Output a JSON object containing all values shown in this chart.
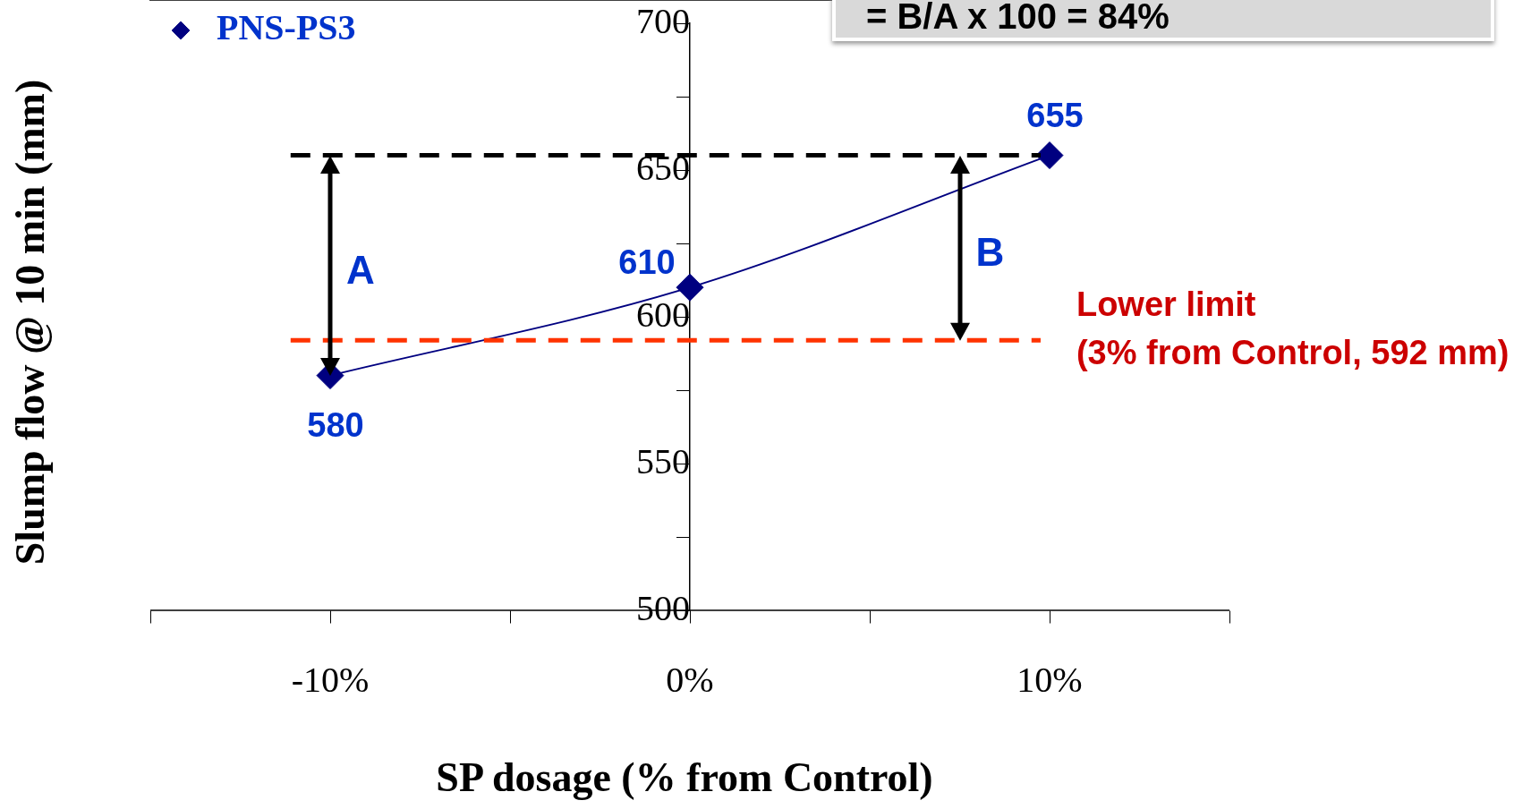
{
  "chart_data": {
    "type": "line",
    "xlabel": "SP dosage (% from Control)",
    "ylabel": "Slump flow @ 10 min (mm)",
    "x": [
      -10,
      0,
      10
    ],
    "series": [
      {
        "name": "PNS-PS3",
        "color": "#000080",
        "values": [
          580,
          610,
          655
        ]
      }
    ],
    "xlim": [
      -15,
      15
    ],
    "xticks": [
      {
        "value": -15,
        "label": null
      },
      {
        "value": -10,
        "label": "-10%"
      },
      {
        "value": -5,
        "label": null
      },
      {
        "value": 0,
        "label": "0%"
      },
      {
        "value": 5,
        "label": null
      },
      {
        "value": 10,
        "label": "10%"
      },
      {
        "value": 15,
        "label": null
      }
    ],
    "ylim": [
      500,
      700
    ],
    "yticks": [
      500,
      {
        "value": 525,
        "label": null
      },
      550,
      {
        "value": 575,
        "label": null
      },
      600,
      {
        "value": 625,
        "label": null
      },
      650,
      {
        "value": 675,
        "label": null
      },
      700
    ],
    "ref_lines": [
      {
        "axis": "y",
        "value": 655,
        "label": null,
        "color": "#000000",
        "line_style": "dashed"
      },
      {
        "axis": "y",
        "value": 592,
        "label": "Lower limit\n(3% from Control, 592 mm)",
        "color": "#ff3300",
        "line_style": "dashed"
      }
    ],
    "annotations": [
      "A",
      "B",
      "= B/A x 100 = 84%"
    ],
    "data_labels": true,
    "marker": "diamond",
    "line_style": "solid",
    "legend": "top left",
    "grid": false
  }
}
